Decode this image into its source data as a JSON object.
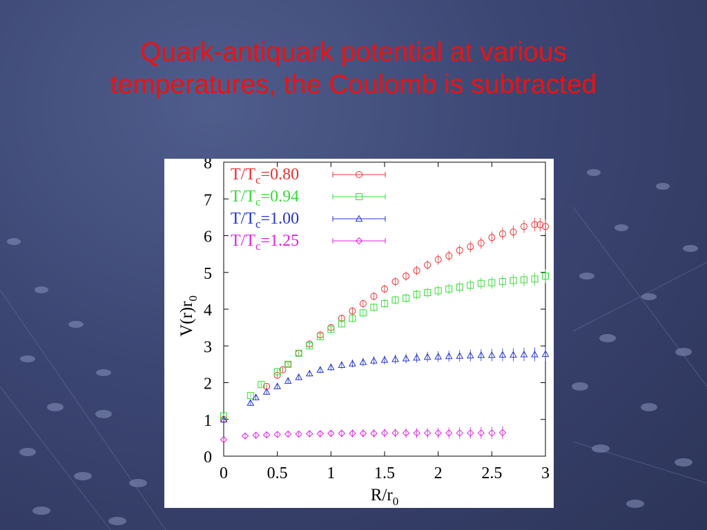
{
  "slide": {
    "title_line1": "Quark-antiquark potential at various",
    "title_line2": "temperatures, the Coulomb is subtracted",
    "title_color": "#ee1111"
  },
  "chart_data": {
    "type": "scatter",
    "title": "",
    "xlabel": "R/r",
    "xlabel_sub": "0",
    "ylabel": "V(r)r",
    "ylabel_sub": "0",
    "xlim": [
      0,
      3
    ],
    "ylim": [
      0,
      8
    ],
    "xticks": [
      "0",
      "0.5",
      "1",
      "1.5",
      "2",
      "2.5",
      "3"
    ],
    "yticks": [
      "0",
      "1",
      "2",
      "3",
      "4",
      "5",
      "6",
      "7",
      "8"
    ],
    "grid": false,
    "legend_position": "top-left",
    "series": [
      {
        "label_pre": "T/T",
        "label_sub": "c",
        "label_post": "=0.80",
        "marker": "circle",
        "color": "#e83030",
        "x": [
          0.0,
          0.4,
          0.5,
          0.55,
          0.6,
          0.7,
          0.8,
          0.9,
          1.0,
          1.1,
          1.2,
          1.3,
          1.4,
          1.5,
          1.6,
          1.7,
          1.8,
          1.9,
          2.0,
          2.1,
          2.2,
          2.3,
          2.4,
          2.5,
          2.6,
          2.7,
          2.8,
          2.9,
          2.95,
          3.0
        ],
        "y": [
          1.0,
          1.9,
          2.2,
          2.35,
          2.5,
          2.8,
          3.05,
          3.3,
          3.5,
          3.75,
          3.95,
          4.15,
          4.35,
          4.55,
          4.75,
          4.9,
          5.05,
          5.2,
          5.35,
          5.45,
          5.6,
          5.7,
          5.8,
          5.95,
          6.05,
          6.1,
          6.25,
          6.3,
          6.3,
          6.25
        ]
      },
      {
        "label_pre": "T/T",
        "label_sub": "c",
        "label_post": "=0.94",
        "marker": "square",
        "color": "#33dd33",
        "x": [
          0.0,
          0.25,
          0.35,
          0.5,
          0.6,
          0.7,
          0.8,
          0.9,
          1.0,
          1.1,
          1.2,
          1.3,
          1.4,
          1.5,
          1.6,
          1.7,
          1.8,
          1.9,
          2.0,
          2.1,
          2.2,
          2.3,
          2.4,
          2.5,
          2.6,
          2.7,
          2.8,
          2.9,
          3.0
        ],
        "y": [
          1.1,
          1.65,
          1.95,
          2.3,
          2.5,
          2.8,
          3.0,
          3.25,
          3.45,
          3.6,
          3.75,
          3.9,
          4.05,
          4.15,
          4.25,
          4.3,
          4.4,
          4.45,
          4.5,
          4.55,
          4.6,
          4.65,
          4.7,
          4.72,
          4.75,
          4.78,
          4.8,
          4.82,
          4.9
        ]
      },
      {
        "label_pre": "T/T",
        "label_sub": "c",
        "label_post": "=1.00",
        "marker": "triangle",
        "color": "#2233cc",
        "x": [
          0.0,
          0.25,
          0.3,
          0.4,
          0.5,
          0.6,
          0.7,
          0.8,
          0.9,
          1.0,
          1.1,
          1.2,
          1.3,
          1.4,
          1.5,
          1.6,
          1.7,
          1.8,
          1.9,
          2.0,
          2.1,
          2.2,
          2.3,
          2.4,
          2.5,
          2.6,
          2.7,
          2.8,
          2.9,
          3.0
        ],
        "y": [
          1.0,
          1.45,
          1.6,
          1.75,
          1.9,
          2.05,
          2.15,
          2.25,
          2.35,
          2.42,
          2.48,
          2.52,
          2.56,
          2.6,
          2.62,
          2.64,
          2.66,
          2.68,
          2.7,
          2.71,
          2.72,
          2.73,
          2.74,
          2.75,
          2.75,
          2.76,
          2.76,
          2.77,
          2.77,
          2.78
        ]
      },
      {
        "label_pre": "T/T",
        "label_sub": "c",
        "label_post": "=1.25",
        "marker": "diamond",
        "color": "#dd22dd",
        "x": [
          0.0,
          0.2,
          0.3,
          0.4,
          0.5,
          0.6,
          0.7,
          0.8,
          0.9,
          1.0,
          1.1,
          1.2,
          1.3,
          1.4,
          1.5,
          1.6,
          1.7,
          1.8,
          1.9,
          2.0,
          2.1,
          2.2,
          2.3,
          2.4,
          2.5,
          2.6
        ],
        "y": [
          0.45,
          0.55,
          0.57,
          0.58,
          0.59,
          0.6,
          0.6,
          0.61,
          0.61,
          0.62,
          0.62,
          0.62,
          0.62,
          0.62,
          0.63,
          0.63,
          0.63,
          0.63,
          0.63,
          0.63,
          0.63,
          0.63,
          0.63,
          0.63,
          0.63,
          0.64
        ]
      }
    ]
  }
}
